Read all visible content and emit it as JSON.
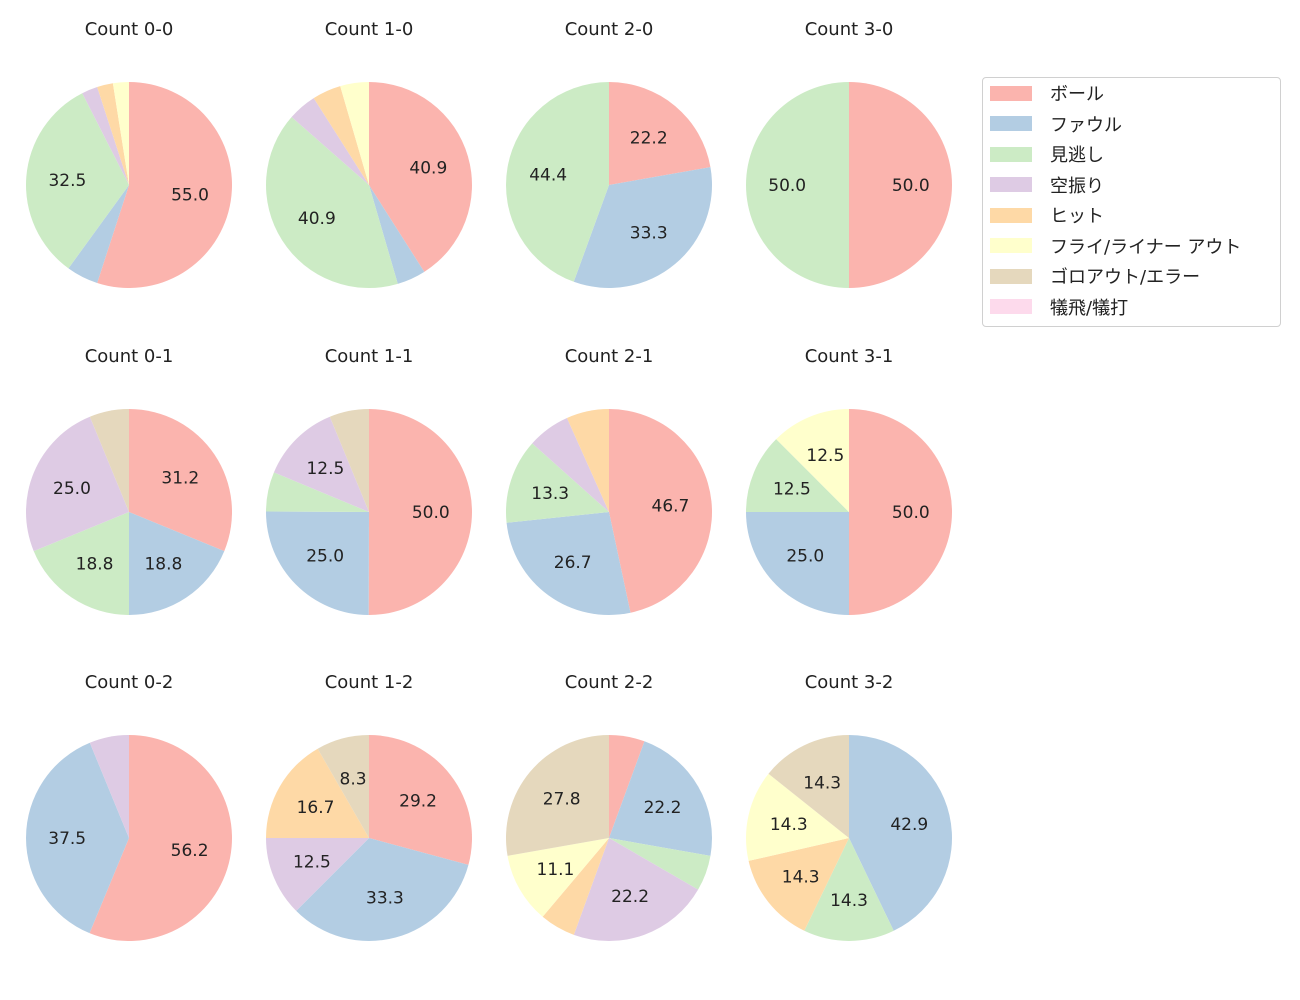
{
  "chart_data": {
    "type": "pie",
    "categories": [
      "ボール",
      "ファウル",
      "見逃し",
      "空振り",
      "ヒット",
      "フライ/ライナー アウト",
      "ゴロアウト/エラー",
      "犠飛/犠打"
    ],
    "colors": [
      "#fbb4ae",
      "#b3cde3",
      "#ccebc5",
      "#decbe4",
      "#fed9a6",
      "#ffffcc",
      "#e5d8bd",
      "#fddaec"
    ],
    "start_angle": 90,
    "direction": "clockwise",
    "legend_position": "right",
    "pies": [
      {
        "title": "Count 0-0",
        "values": [
          55.0,
          5.0,
          32.5,
          2.5,
          2.5,
          2.5,
          0,
          0
        ]
      },
      {
        "title": "Count 1-0",
        "values": [
          40.9,
          4.5,
          40.9,
          4.5,
          4.5,
          4.5,
          0,
          0
        ]
      },
      {
        "title": "Count 2-0",
        "values": [
          22.2,
          33.3,
          44.4,
          0,
          0,
          0,
          0,
          0
        ]
      },
      {
        "title": "Count 3-0",
        "values": [
          50.0,
          0,
          50.0,
          0,
          0,
          0,
          0,
          0
        ]
      },
      {
        "title": "Count 0-1",
        "values": [
          31.2,
          18.8,
          18.8,
          25.0,
          0,
          0,
          6.2,
          0
        ]
      },
      {
        "title": "Count 1-1",
        "values": [
          50.0,
          25.0,
          6.2,
          12.5,
          0,
          0,
          6.2,
          0
        ]
      },
      {
        "title": "Count 2-1",
        "values": [
          46.7,
          26.7,
          13.3,
          6.7,
          6.7,
          0,
          0,
          0
        ]
      },
      {
        "title": "Count 3-1",
        "values": [
          50.0,
          25.0,
          12.5,
          0,
          0,
          12.5,
          0,
          0
        ]
      },
      {
        "title": "Count 0-2",
        "values": [
          56.2,
          37.5,
          0,
          6.2,
          0,
          0,
          0,
          0
        ]
      },
      {
        "title": "Count 1-2",
        "values": [
          29.2,
          33.3,
          0,
          12.5,
          16.7,
          0,
          8.3,
          0
        ]
      },
      {
        "title": "Count 2-2",
        "values": [
          5.6,
          22.2,
          5.6,
          22.2,
          5.6,
          11.1,
          27.8,
          0
        ]
      },
      {
        "title": "Count 3-2",
        "values": [
          0,
          42.9,
          14.3,
          0,
          14.3,
          14.3,
          14.3,
          0
        ]
      }
    ]
  }
}
